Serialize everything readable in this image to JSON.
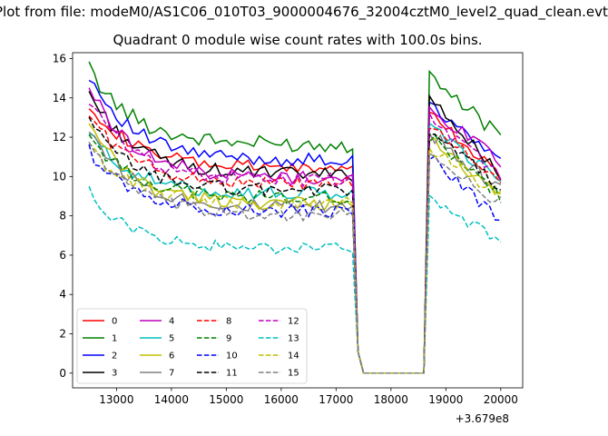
{
  "figure": {
    "suptitle": "Plot from file: modeM0/AS1C06_010T03_9000004676_32004cztM0_level2_quad_clean.evt",
    "title": "Quadrant 0 module wise count rates with 100.0s bins.",
    "offset_text": "+3.679e8"
  },
  "chart_data": {
    "type": "line",
    "title": "Quadrant 0 module wise count rates with 100.0s bins.",
    "xlabel": "",
    "ylabel": "",
    "x_offset": 367900000,
    "xlim": [
      12200,
      20400
    ],
    "ylim": [
      -0.75,
      16.3
    ],
    "xticks": [
      13000,
      14000,
      15000,
      16000,
      17000,
      18000,
      19000,
      20000
    ],
    "yticks": [
      0,
      2,
      4,
      6,
      8,
      10,
      12,
      14,
      16
    ],
    "legend_loc": "lower left",
    "legend_ncol": 4,
    "series": [
      {
        "name": "0",
        "color": "#ff0000",
        "dash": "solid",
        "early_start": 13.8,
        "early_level": 10.4,
        "late_start": 13.2,
        "late_end": 10.2,
        "amp": 0.35
      },
      {
        "name": "1",
        "color": "#008000",
        "dash": "solid",
        "early_start": 15.5,
        "early_level": 11.6,
        "late_start": 15.0,
        "late_end": 12.0,
        "amp": 0.4
      },
      {
        "name": "2",
        "color": "#0000ff",
        "dash": "solid",
        "early_start": 15.2,
        "early_level": 10.8,
        "late_start": 13.8,
        "late_end": 10.6,
        "amp": 0.35
      },
      {
        "name": "3",
        "color": "#000000",
        "dash": "solid",
        "early_start": 14.3,
        "early_level": 10.1,
        "late_start": 14.3,
        "late_end": 9.9,
        "amp": 0.35
      },
      {
        "name": "4",
        "color": "#bf00bf",
        "dash": "solid",
        "early_start": 14.6,
        "early_level": 9.9,
        "late_start": 13.4,
        "late_end": 10.8,
        "amp": 0.35
      },
      {
        "name": "5",
        "color": "#00bfbf",
        "dash": "solid",
        "early_start": 12.2,
        "early_level": 9.1,
        "late_start": 12.5,
        "late_end": 9.7,
        "amp": 0.35
      },
      {
        "name": "6",
        "color": "#bfbf00",
        "dash": "solid",
        "early_start": 12.6,
        "early_level": 8.6,
        "late_start": 12.0,
        "late_end": 8.9,
        "amp": 0.35
      },
      {
        "name": "7",
        "color": "#808080",
        "dash": "solid",
        "early_start": 12.5,
        "early_level": 8.4,
        "late_start": 12.2,
        "late_end": 9.3,
        "amp": 0.35
      },
      {
        "name": "8",
        "color": "#ff0000",
        "dash": "dashed",
        "early_start": 13.2,
        "early_level": 9.6,
        "late_start": 12.7,
        "late_end": 9.6,
        "amp": 0.35
      },
      {
        "name": "9",
        "color": "#008000",
        "dash": "dashed",
        "early_start": 12.1,
        "early_level": 8.9,
        "late_start": 12.0,
        "late_end": 9.0,
        "amp": 0.35
      },
      {
        "name": "10",
        "color": "#0000ff",
        "dash": "dashed",
        "early_start": 11.3,
        "early_level": 8.2,
        "late_start": 11.0,
        "late_end": 7.8,
        "amp": 0.35
      },
      {
        "name": "11",
        "color": "#000000",
        "dash": "dashed",
        "early_start": 12.8,
        "early_level": 9.3,
        "late_start": 12.4,
        "late_end": 9.4,
        "amp": 0.35
      },
      {
        "name": "12",
        "color": "#bf00bf",
        "dash": "dashed",
        "early_start": 13.9,
        "early_level": 9.8,
        "late_start": 13.0,
        "late_end": 10.1,
        "amp": 0.35
      },
      {
        "name": "13",
        "color": "#00bfbf",
        "dash": "dashed",
        "early_start": 9.2,
        "early_level": 6.3,
        "late_start": 9.0,
        "late_end": 6.6,
        "amp": 0.3
      },
      {
        "name": "14",
        "color": "#bfbf00",
        "dash": "dashed",
        "early_start": 11.5,
        "early_level": 8.6,
        "late_start": 11.5,
        "late_end": 9.0,
        "amp": 0.35
      },
      {
        "name": "15",
        "color": "#808080",
        "dash": "dashed",
        "early_start": 11.8,
        "early_level": 8.0,
        "late_start": 10.9,
        "late_end": 8.7,
        "amp": 0.35
      }
    ],
    "segments": {
      "early_start": 12500,
      "early_end": 17300,
      "drop_points": [
        [
          17400,
          1.1
        ],
        [
          17500,
          0.0
        ]
      ],
      "zero_start": 17500,
      "zero_end": 18600,
      "late_start": 18700,
      "late_end": 20000,
      "step": 100
    }
  }
}
